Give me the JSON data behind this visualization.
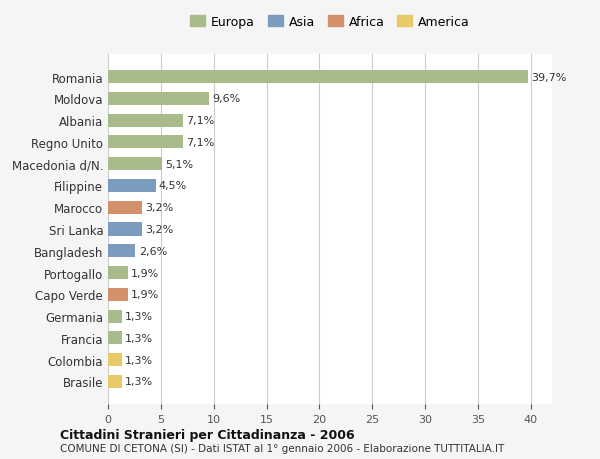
{
  "countries": [
    "Romania",
    "Moldova",
    "Albania",
    "Regno Unito",
    "Macedonia d/N.",
    "Filippine",
    "Marocco",
    "Sri Lanka",
    "Bangladesh",
    "Portogallo",
    "Capo Verde",
    "Germania",
    "Francia",
    "Colombia",
    "Brasile"
  ],
  "values": [
    39.7,
    9.6,
    7.1,
    7.1,
    5.1,
    4.5,
    3.2,
    3.2,
    2.6,
    1.9,
    1.9,
    1.3,
    1.3,
    1.3,
    1.3
  ],
  "labels": [
    "39,7%",
    "9,6%",
    "7,1%",
    "7,1%",
    "5,1%",
    "4,5%",
    "3,2%",
    "3,2%",
    "2,6%",
    "1,9%",
    "1,9%",
    "1,3%",
    "1,3%",
    "1,3%",
    "1,3%"
  ],
  "continents": [
    "Europa",
    "Europa",
    "Europa",
    "Europa",
    "Europa",
    "Asia",
    "Africa",
    "Asia",
    "Asia",
    "Europa",
    "Africa",
    "Europa",
    "Europa",
    "America",
    "America"
  ],
  "colors": {
    "Europa": "#a8bb8a",
    "Asia": "#7b9bbf",
    "Africa": "#d4906a",
    "America": "#e8c96a"
  },
  "legend_order": [
    "Europa",
    "Asia",
    "Africa",
    "America"
  ],
  "title1": "Cittadini Stranieri per Cittadinanza - 2006",
  "title2": "COMUNE DI CETONA (SI) - Dati ISTAT al 1° gennaio 2006 - Elaborazione TUTTITALIA.IT",
  "xlim": [
    0,
    42
  ],
  "xticks": [
    0,
    5,
    10,
    15,
    20,
    25,
    30,
    35,
    40
  ],
  "background_color": "#f5f5f5",
  "bar_background": "#ffffff",
  "grid_color": "#cccccc"
}
